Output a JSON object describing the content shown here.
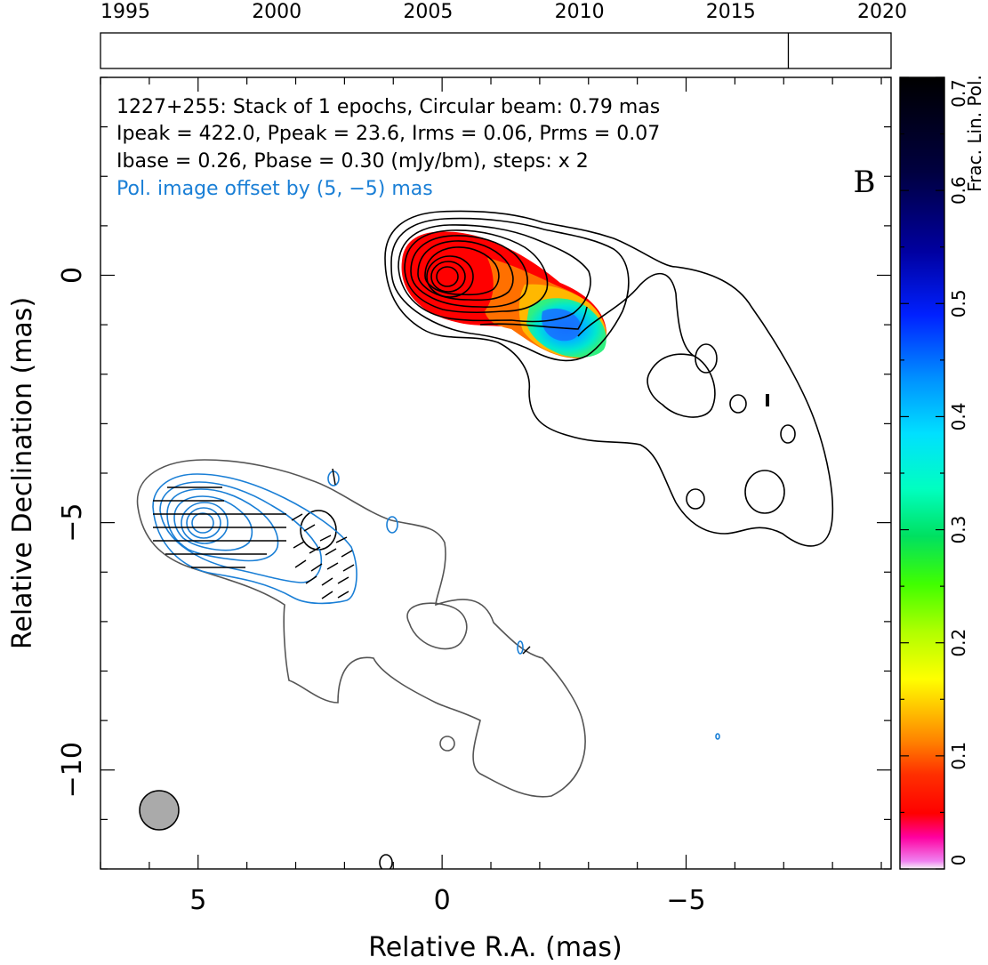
{
  "chart_data": {
    "type": "contour",
    "source_name": "1227+255",
    "panel_letter": "B",
    "info_lines": [
      "1227+255: Stack of 1 epochs, Circular beam: 0.79 mas",
      "Ipeak = 422.0, Ppeak = 23.6, Irms = 0.06, Prms = 0.07",
      "Ibase = 0.26, Pbase = 0.30 (mJy/bm), steps: x 2"
    ],
    "pol_offset_note": "Pol. image offset by (5, −5) mas",
    "xlabel": "Relative R.A. (mas)",
    "ylabel": "Relative Declination (mas)",
    "xlim": [
      7.0,
      -9.2
    ],
    "ylim": [
      -12.0,
      4.0
    ],
    "x_ticks": [
      {
        "value": 5,
        "label": "5"
      },
      {
        "value": 0,
        "label": "0"
      },
      {
        "value": -5,
        "label": "−5"
      }
    ],
    "y_ticks": [
      {
        "value": 0,
        "label": "0"
      },
      {
        "value": -5,
        "label": "−5"
      },
      {
        "value": -10,
        "label": "−10"
      }
    ],
    "timeline": {
      "ticks": [
        {
          "value": 1995,
          "label": "1995"
        },
        {
          "value": 2000,
          "label": "2000"
        },
        {
          "value": 2005,
          "label": "2005"
        },
        {
          "value": 2010,
          "label": "2010"
        },
        {
          "value": 2015,
          "label": "2015"
        },
        {
          "value": 2020,
          "label": "2020"
        }
      ],
      "epochs": [
        2016.9
      ]
    },
    "colorbar": {
      "label": "Frac. Lin. Pol.",
      "range": [
        0,
        0.7
      ],
      "ticks": [
        {
          "value": 0,
          "label": "0"
        },
        {
          "value": 0.1,
          "label": "0.1"
        },
        {
          "value": 0.2,
          "label": "0.2"
        },
        {
          "value": 0.3,
          "label": "0.3"
        },
        {
          "value": 0.4,
          "label": "0.4"
        },
        {
          "value": 0.5,
          "label": "0.5"
        },
        {
          "value": 0.6,
          "label": "0.6"
        },
        {
          "value": 0.7,
          "label": "0.7"
        }
      ]
    },
    "beam": {
      "ra": 5.9,
      "dec": -10.8,
      "diameter_mas": 0.79
    },
    "colors": {
      "total_intensity": "#000000",
      "offset_total_intensity": "#555555",
      "polarization": "#1a7fd6",
      "beam_fill": "#aaaaaa"
    }
  }
}
